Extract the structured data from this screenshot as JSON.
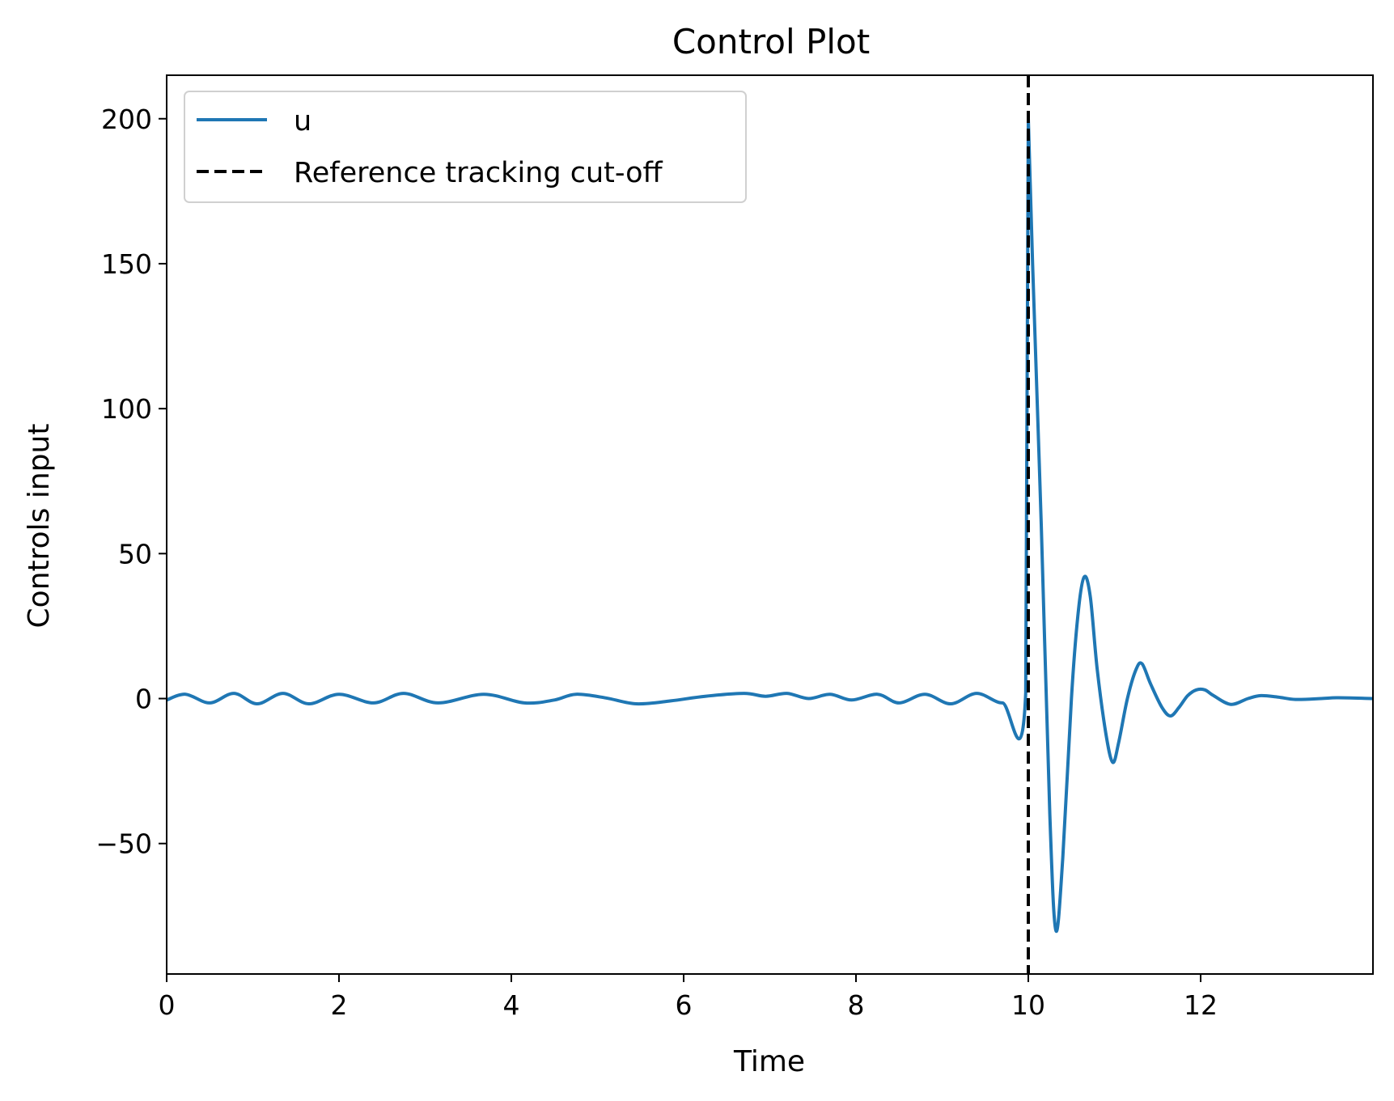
{
  "chart_data": {
    "type": "line",
    "title": "Control Plot",
    "xlabel": "Time",
    "ylabel": "Controls input",
    "xlim": [
      0,
      14
    ],
    "ylim": [
      -95,
      215
    ],
    "xticks": [
      0,
      2,
      4,
      6,
      8,
      10,
      12
    ],
    "yticks": [
      -50,
      0,
      50,
      100,
      150,
      200
    ],
    "ytick_labels": [
      "−50",
      "0",
      "50",
      "100",
      "150",
      "200"
    ],
    "grid": false,
    "legend_position": "top-left",
    "series": [
      {
        "name": "u",
        "color": "#1f77b4",
        "style": "solid",
        "points": [
          [
            0,
            -0.5
          ],
          [
            0.22,
            1.5
          ],
          [
            0.5,
            -1.5
          ],
          [
            0.78,
            1.8
          ],
          [
            1.05,
            -1.8
          ],
          [
            1.35,
            1.8
          ],
          [
            1.65,
            -1.8
          ],
          [
            2.0,
            1.5
          ],
          [
            2.4,
            -1.5
          ],
          [
            2.75,
            1.8
          ],
          [
            3.15,
            -1.5
          ],
          [
            3.68,
            1.5
          ],
          [
            4.15,
            -1.5
          ],
          [
            4.5,
            -0.5
          ],
          [
            4.75,
            1.5
          ],
          [
            5.1,
            0.2
          ],
          [
            5.45,
            -1.8
          ],
          [
            5.85,
            -0.8
          ],
          [
            6.25,
            0.8
          ],
          [
            6.7,
            1.8
          ],
          [
            6.95,
            0.8
          ],
          [
            7.2,
            1.8
          ],
          [
            7.45,
            0
          ],
          [
            7.7,
            1.5
          ],
          [
            7.95,
            -0.5
          ],
          [
            8.25,
            1.5
          ],
          [
            8.5,
            -1.5
          ],
          [
            8.8,
            1.5
          ],
          [
            9.1,
            -1.8
          ],
          [
            9.4,
            1.8
          ],
          [
            9.7,
            -1.5
          ],
          [
            9.97,
            2.0
          ],
          [
            10.0,
            200
          ],
          [
            10.05,
            150
          ],
          [
            10.15,
            60
          ],
          [
            10.25,
            -40
          ],
          [
            10.32,
            -80
          ],
          [
            10.4,
            -55
          ],
          [
            10.5,
            0
          ],
          [
            10.58,
            30
          ],
          [
            10.65,
            42
          ],
          [
            10.72,
            35
          ],
          [
            10.8,
            10
          ],
          [
            10.9,
            -12
          ],
          [
            10.98,
            -22
          ],
          [
            11.05,
            -15
          ],
          [
            11.15,
            0
          ],
          [
            11.25,
            10
          ],
          [
            11.32,
            12
          ],
          [
            11.42,
            5
          ],
          [
            11.55,
            -3
          ],
          [
            11.65,
            -6
          ],
          [
            11.75,
            -3
          ],
          [
            11.85,
            1
          ],
          [
            11.95,
            3
          ],
          [
            12.05,
            3
          ],
          [
            12.15,
            1
          ],
          [
            12.35,
            -2
          ],
          [
            12.55,
            0
          ],
          [
            12.7,
            1.0
          ],
          [
            12.9,
            0.5
          ],
          [
            13.1,
            -0.3
          ],
          [
            13.4,
            0
          ],
          [
            13.6,
            0.3
          ],
          [
            14,
            0
          ]
        ]
      },
      {
        "name": "Reference tracking cut-off",
        "color": "#000000",
        "style": "dashed",
        "vertical_x": 10
      }
    ]
  }
}
